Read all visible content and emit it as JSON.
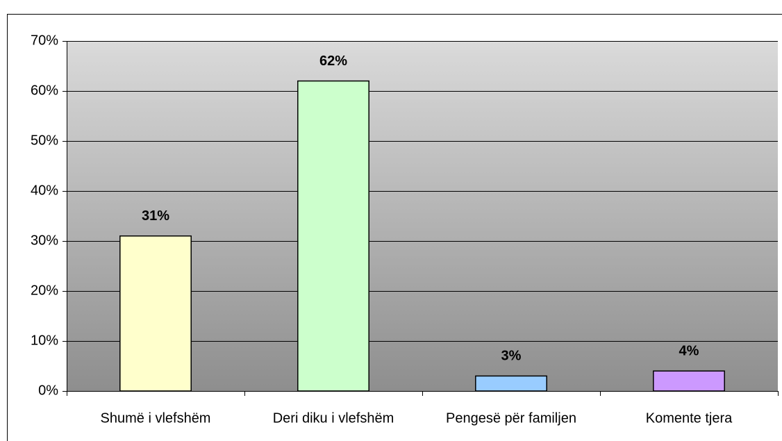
{
  "chart_data": {
    "type": "bar",
    "categories": [
      "Shumë i vlefshëm",
      "Deri diku i vlefshëm",
      "Pengesë për familjen",
      "Komente tjera"
    ],
    "values": [
      31,
      62,
      3,
      4
    ],
    "value_labels": [
      "31%",
      "62%",
      "3%",
      "4%"
    ],
    "colors": [
      "#ffffcc",
      "#ccffcc",
      "#99ccff",
      "#cc99ff"
    ],
    "ylim": [
      0,
      70
    ],
    "yticks": [
      {
        "value": 0,
        "label": "0%"
      },
      {
        "value": 10,
        "label": "10%"
      },
      {
        "value": 20,
        "label": "20%"
      },
      {
        "value": 30,
        "label": "30%"
      },
      {
        "value": 40,
        "label": "40%"
      },
      {
        "value": 50,
        "label": "50%"
      },
      {
        "value": 60,
        "label": "60%"
      },
      {
        "value": 70,
        "label": "70%"
      }
    ],
    "grid": true
  }
}
